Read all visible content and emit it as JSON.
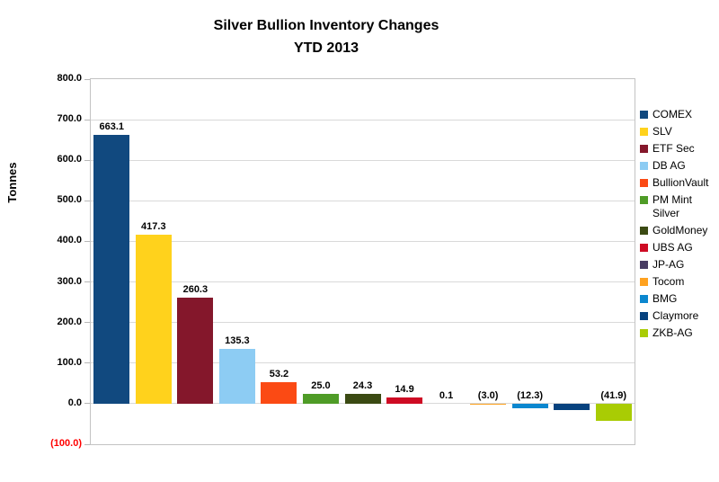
{
  "title": {
    "line1": "Silver Bullion Inventory Changes",
    "line2": "YTD 2013"
  },
  "chart_data": {
    "type": "bar",
    "title": "Silver Bullion Inventory Changes YTD 2013",
    "xlabel": "",
    "ylabel": "Tonnes",
    "ylim": [
      -100,
      800
    ],
    "grid": true,
    "legend_position": "right",
    "categories": [
      "COMEX",
      "SLV",
      "ETF Sec",
      "DB AG",
      "BullionVault",
      "PM Mint Silver",
      "GoldMoney",
      "UBS AG",
      "JP-AG",
      "Tocom",
      "BMG",
      "Claymore",
      "ZKB-AG"
    ],
    "values": [
      663.1,
      417.3,
      260.3,
      135.3,
      53.2,
      25.0,
      24.3,
      14.9,
      0.1,
      -3.0,
      -12.3,
      -15.5,
      -41.9
    ],
    "data_labels": [
      "663.1",
      "417.3",
      "260.3",
      "135.3",
      "53.2",
      "25.0",
      "24.3",
      "14.9",
      "0.1",
      "(3.0)",
      "(12.3)",
      "",
      "(41.9)"
    ],
    "colors": [
      "#11497F",
      "#FFD21C",
      "#84172B",
      "#8DCCF3",
      "#FB4A14",
      "#4F9C27",
      "#3B4A13",
      "#CE0B24",
      "#483C63",
      "#FFA220",
      "#0B87CF",
      "#07427E",
      "#A9CC04"
    ],
    "yticks": [
      {
        "value": 800,
        "label": "800.0",
        "color": "#000000"
      },
      {
        "value": 700,
        "label": "700.0",
        "color": "#000000"
      },
      {
        "value": 600,
        "label": "600.0",
        "color": "#000000"
      },
      {
        "value": 500,
        "label": "500.0",
        "color": "#000000"
      },
      {
        "value": 400,
        "label": "400.0",
        "color": "#000000"
      },
      {
        "value": 300,
        "label": "300.0",
        "color": "#000000"
      },
      {
        "value": 200,
        "label": "200.0",
        "color": "#000000"
      },
      {
        "value": 100,
        "label": "100.0",
        "color": "#000000"
      },
      {
        "value": 0,
        "label": "0.0",
        "color": "#000000"
      },
      {
        "value": -100,
        "label": "(100.0)",
        "color": "#FF0000"
      }
    ]
  }
}
